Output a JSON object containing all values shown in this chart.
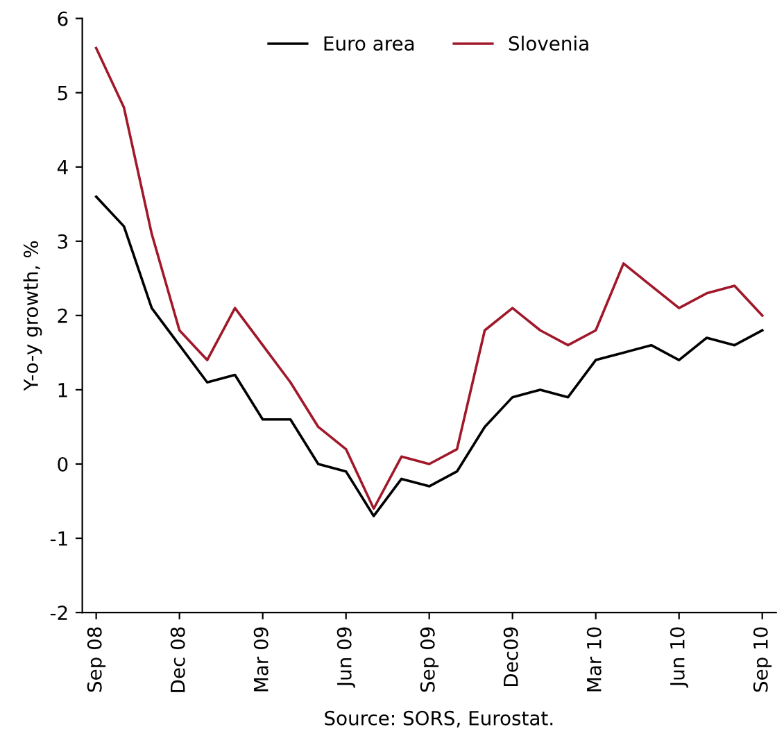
{
  "chart_data": {
    "type": "line",
    "ylabel": "Y-o-y growth, %",
    "categories": [
      "Sep 08",
      null,
      null,
      "Dec 08",
      null,
      null,
      "Mar 09",
      null,
      null,
      "Jun 09",
      null,
      null,
      "Sep 09",
      null,
      null,
      "Dec09",
      null,
      null,
      "Mar 10",
      null,
      null,
      "Jun 10",
      null,
      null,
      "Sep 10"
    ],
    "series": [
      {
        "name": "Euro area",
        "color": "#000000",
        "values": [
          3.6,
          3.2,
          2.1,
          1.6,
          1.1,
          1.2,
          0.6,
          0.6,
          0.0,
          -0.1,
          -0.7,
          -0.2,
          -0.3,
          -0.1,
          0.5,
          0.9,
          1.0,
          0.9,
          1.4,
          1.5,
          1.6,
          1.4,
          1.7,
          1.6,
          1.8
        ]
      },
      {
        "name": "Slovenia",
        "color": "#a0182a",
        "values": [
          5.6,
          4.8,
          3.1,
          1.8,
          1.4,
          2.1,
          1.6,
          1.1,
          0.5,
          0.2,
          -0.6,
          0.1,
          0.0,
          0.2,
          1.8,
          2.1,
          1.8,
          1.6,
          1.8,
          2.7,
          2.4,
          2.1,
          2.3,
          2.4,
          2.0
        ]
      }
    ],
    "ylim": [
      -2,
      6
    ],
    "yticks": [
      -2,
      -1,
      0,
      1,
      2,
      3,
      4,
      5,
      6
    ],
    "grid": false,
    "legend": "top",
    "marker": "none",
    "line_style": "solid",
    "annotations": [
      "Source: SORS, Eurostat."
    ]
  }
}
